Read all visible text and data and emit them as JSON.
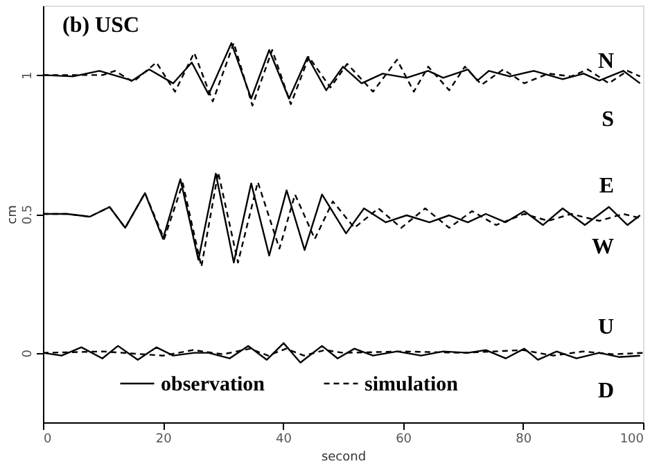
{
  "chart_data": {
    "type": "line",
    "title": "(b) USC",
    "xlabel": "second",
    "ylabel": "cm",
    "xlim": [
      0,
      100
    ],
    "xticks": [
      0,
      20,
      40,
      60,
      80,
      100
    ],
    "ylim": [
      -0.25,
      1.25
    ],
    "yticks": [
      0,
      0.5,
      1
    ],
    "grid": false,
    "legend": "bottom",
    "marker": "none",
    "annotations": [
      "N",
      "S",
      "E",
      "W",
      "U",
      "D"
    ],
    "series": [
      {
        "name": "observation",
        "color": "#000000",
        "line_style": "solid",
        "x": [
          0,
          5,
          9.4,
          14.9,
          17.7,
          21.7,
          24.8,
          27.6,
          31.4,
          34.7,
          37.7,
          41.0,
          44.1,
          47.2,
          50.0,
          53.1,
          56.6,
          60.6,
          64.2,
          66.7,
          70.8,
          72.4,
          74.3,
          77.8,
          81.8,
          86.6,
          90.1,
          92.7,
          96.7,
          99.5
        ],
        "values": [
          1.0,
          0.995,
          1.015,
          0.98,
          1.02,
          0.97,
          1.045,
          0.93,
          1.115,
          0.915,
          1.09,
          0.915,
          1.065,
          0.945,
          1.03,
          0.97,
          1.005,
          0.99,
          1.015,
          0.99,
          1.02,
          0.98,
          1.015,
          0.995,
          1.015,
          0.985,
          1.005,
          0.98,
          1.015,
          0.97
        ]
      },
      {
        "name": "simulation",
        "color": "#000000",
        "line_style": "dashed",
        "x": [
          0,
          10,
          12,
          15,
          18.9,
          22,
          25.2,
          28.3,
          31.8,
          34.9,
          38.2,
          41.3,
          44.3,
          47.9,
          50.7,
          55.0,
          59.0,
          61.8,
          64.2,
          67.7,
          70.3,
          73.1,
          76.7,
          80.2,
          84.2,
          88,
          90.8,
          94.3,
          97.4,
          99.5
        ],
        "values": [
          1.0,
          1.0,
          1.015,
          0.975,
          1.045,
          0.94,
          1.08,
          0.905,
          1.115,
          0.89,
          1.09,
          0.895,
          1.065,
          0.955,
          1.04,
          0.94,
          1.055,
          0.94,
          1.03,
          0.945,
          1.03,
          0.965,
          1.02,
          0.97,
          1.005,
          0.995,
          1.02,
          0.97,
          1.015,
          0.995
        ]
      },
      {
        "color": "#000000",
        "line_style": "solid",
        "x": [
          0,
          4,
          7.8,
          11.1,
          13.7,
          17,
          20,
          22.9,
          25.9,
          28.8,
          31.8,
          34.7,
          37.7,
          40.6,
          43.6,
          46.5,
          50.5,
          53.5,
          57.1,
          60.6,
          64.4,
          67.7,
          70.8,
          73.8,
          77.1,
          80.2,
          83.3,
          86.6,
          90.3,
          94.3,
          97.4,
          99.5
        ],
        "values": [
          0.5,
          0.5,
          0.49,
          0.525,
          0.45,
          0.575,
          0.41,
          0.625,
          0.335,
          0.645,
          0.325,
          0.61,
          0.35,
          0.585,
          0.37,
          0.57,
          0.43,
          0.52,
          0.47,
          0.495,
          0.47,
          0.495,
          0.47,
          0.5,
          0.47,
          0.51,
          0.46,
          0.52,
          0.46,
          0.525,
          0.46,
          0.495
        ]
      },
      {
        "color": "#000000",
        "line_style": "dashed",
        "x": [
          0,
          4,
          7.8,
          11.1,
          13.7,
          17,
          20.2,
          23.3,
          26.4,
          29.2,
          32.5,
          35.8,
          39.4,
          42,
          45.3,
          48.3,
          51.9,
          55.9,
          59.7,
          63.7,
          67.7,
          71.5,
          75.5,
          80.2,
          84.2,
          88,
          92.7,
          96.7,
          99.5
        ],
        "values": [
          0.5,
          0.5,
          0.49,
          0.525,
          0.45,
          0.575,
          0.41,
          0.61,
          0.31,
          0.65,
          0.325,
          0.615,
          0.375,
          0.57,
          0.41,
          0.545,
          0.45,
          0.52,
          0.45,
          0.52,
          0.45,
          0.51,
          0.46,
          0.5,
          0.475,
          0.5,
          0.475,
          0.5,
          0.485
        ]
      },
      {
        "color": "#000000",
        "line_style": "solid",
        "x": [
          0,
          3.1,
          6.4,
          9.9,
          12.5,
          15.8,
          18.9,
          21.7,
          25.2,
          27.6,
          31.1,
          34.2,
          37.3,
          40.1,
          42.9,
          46.5,
          49.1,
          51.9,
          55,
          59,
          63,
          66.7,
          70.8,
          73.8,
          77.1,
          80.2,
          82.5,
          85.6,
          88.9,
          92.7,
          96,
          99.5
        ],
        "values": [
          0,
          -0.01,
          0.02,
          -0.02,
          0.025,
          -0.025,
          0.02,
          -0.01,
          0,
          0,
          -0.02,
          0.025,
          -0.025,
          0.035,
          -0.035,
          0.025,
          -0.02,
          0.015,
          -0.01,
          0.005,
          -0.01,
          0.005,
          0,
          0.01,
          -0.02,
          0.015,
          -0.025,
          0.005,
          -0.02,
          0,
          -0.015,
          -0.01
        ]
      },
      {
        "color": "#000000",
        "line_style": "dashed",
        "x": [
          0,
          10,
          20,
          25,
          30,
          34.5,
          37.5,
          40.5,
          43.5,
          47,
          50,
          60,
          70,
          80,
          85,
          90,
          95,
          100
        ],
        "values": [
          0,
          0.005,
          -0.01,
          0.01,
          -0.005,
          0.015,
          -0.01,
          0.015,
          -0.01,
          0.01,
          0,
          0.005,
          0,
          0.01,
          -0.01,
          0.005,
          -0.005,
          0
        ]
      }
    ]
  }
}
